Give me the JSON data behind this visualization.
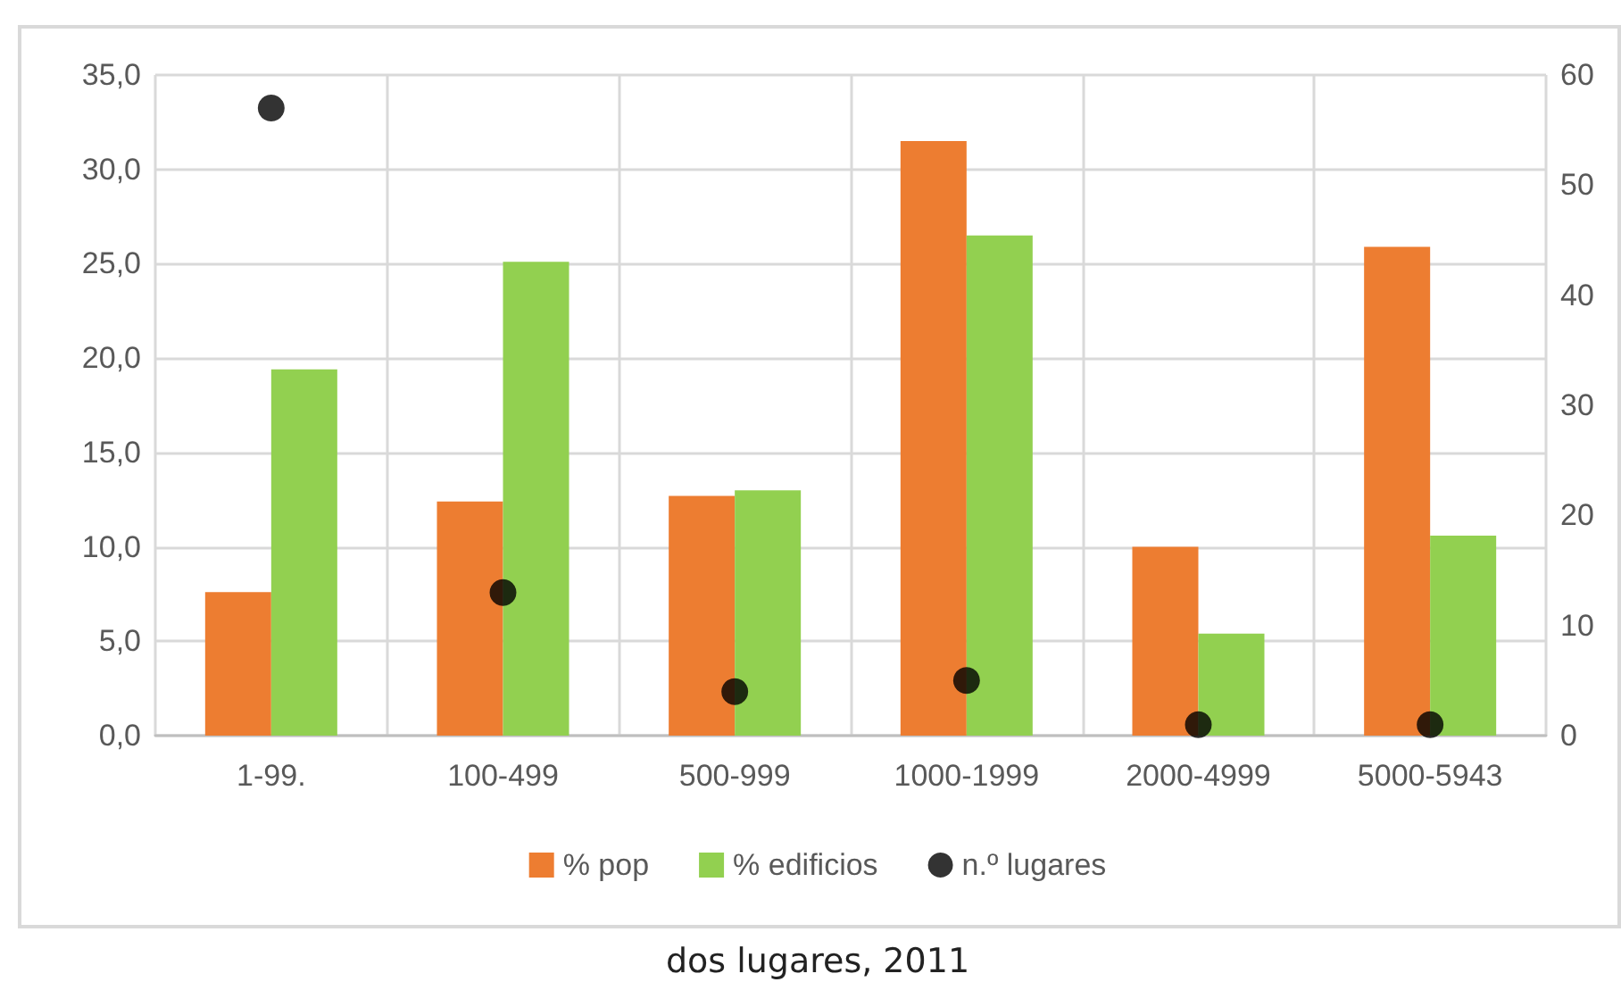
{
  "chart_data": {
    "type": "bar",
    "categories": [
      "1-99.",
      "100-499",
      "500-999",
      "1000-1999",
      "2000-4999",
      "5000-5943"
    ],
    "series": [
      {
        "name": "% pop",
        "color": "#ed7d31",
        "values": [
          7.6,
          12.4,
          12.7,
          31.5,
          10.0,
          25.9
        ]
      },
      {
        "name": "% edificios",
        "color": "#92d050",
        "values": [
          19.4,
          25.1,
          13.0,
          26.5,
          5.4,
          10.6
        ]
      },
      {
        "name": "n.º lugares",
        "type": "scatter",
        "axis": "y2",
        "color": "#000000",
        "marker": "circle",
        "values": [
          57,
          13,
          4,
          5,
          1,
          1
        ]
      }
    ],
    "ylim": [
      0,
      35
    ],
    "yticks": [
      {
        "value": 0,
        "label": "0,0"
      },
      {
        "value": 5,
        "label": "5,0"
      },
      {
        "value": 10,
        "label": "10,0"
      },
      {
        "value": 15,
        "label": "15,0"
      },
      {
        "value": 20,
        "label": "20,0"
      },
      {
        "value": 25,
        "label": "25,0"
      },
      {
        "value": 30,
        "label": "30,0"
      },
      {
        "value": 35,
        "label": "35,0"
      }
    ],
    "y2lim": [
      0,
      60
    ],
    "y2ticks": [
      0,
      10,
      20,
      30,
      40,
      50,
      60
    ],
    "grid": true,
    "legend": "bottom",
    "annotations": [
      "dos lugares, 2011"
    ]
  }
}
